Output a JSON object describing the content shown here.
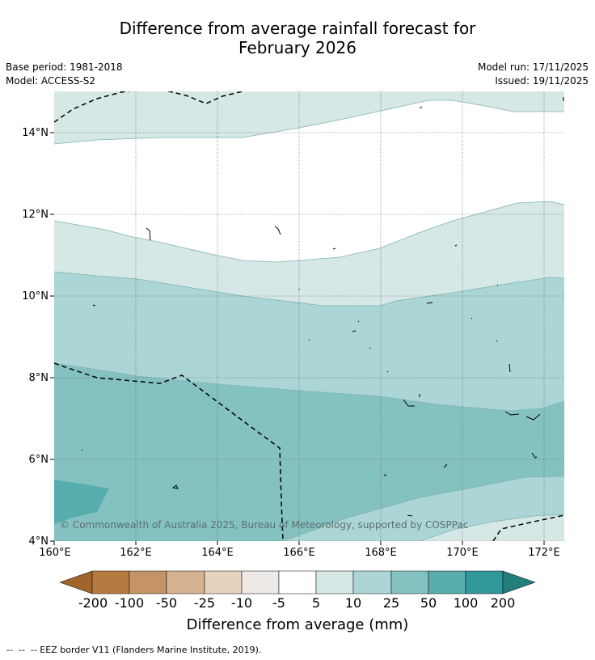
{
  "header": {
    "title_line1": "Difference from average rainfall forecast for",
    "title_line2": "February 2026",
    "base_period": "Base period: 1981-2018",
    "model": "Model: ACCESS-S2",
    "model_run": "Model run: 17/11/2025",
    "issued": "Issued: 19/11/2025"
  },
  "map": {
    "lat_labels": [
      "14°N",
      "12°N",
      "10°N",
      "8°N",
      "6°N",
      "4°N"
    ],
    "lon_labels": [
      "160°E",
      "162°E",
      "164°E",
      "166°E",
      "168°E",
      "170°E",
      "172°E"
    ],
    "copyright": "© Commonwealth of Australia 2025, Bureau of Meteorology, supported by COSPPac"
  },
  "colorbar": {
    "labels": [
      "-200",
      "-100",
      "-50",
      "-25",
      "-10",
      "-5",
      "5",
      "10",
      "25",
      "50",
      "100",
      "200"
    ],
    "title": "Difference from average (mm)",
    "colors": [
      "#a0642d",
      "#b57a3f",
      "#c49467",
      "#d6b290",
      "#e6d2bf",
      "#ece9e6",
      "#ffffff",
      "#d5e8e6",
      "#acd5d5",
      "#84c2c1",
      "#58aeac",
      "#31989a",
      "#247f7c"
    ]
  },
  "legend": {
    "eez_note": "--  --  -- EEZ border V11 (Flanders Marine Institute, 2019)."
  }
}
